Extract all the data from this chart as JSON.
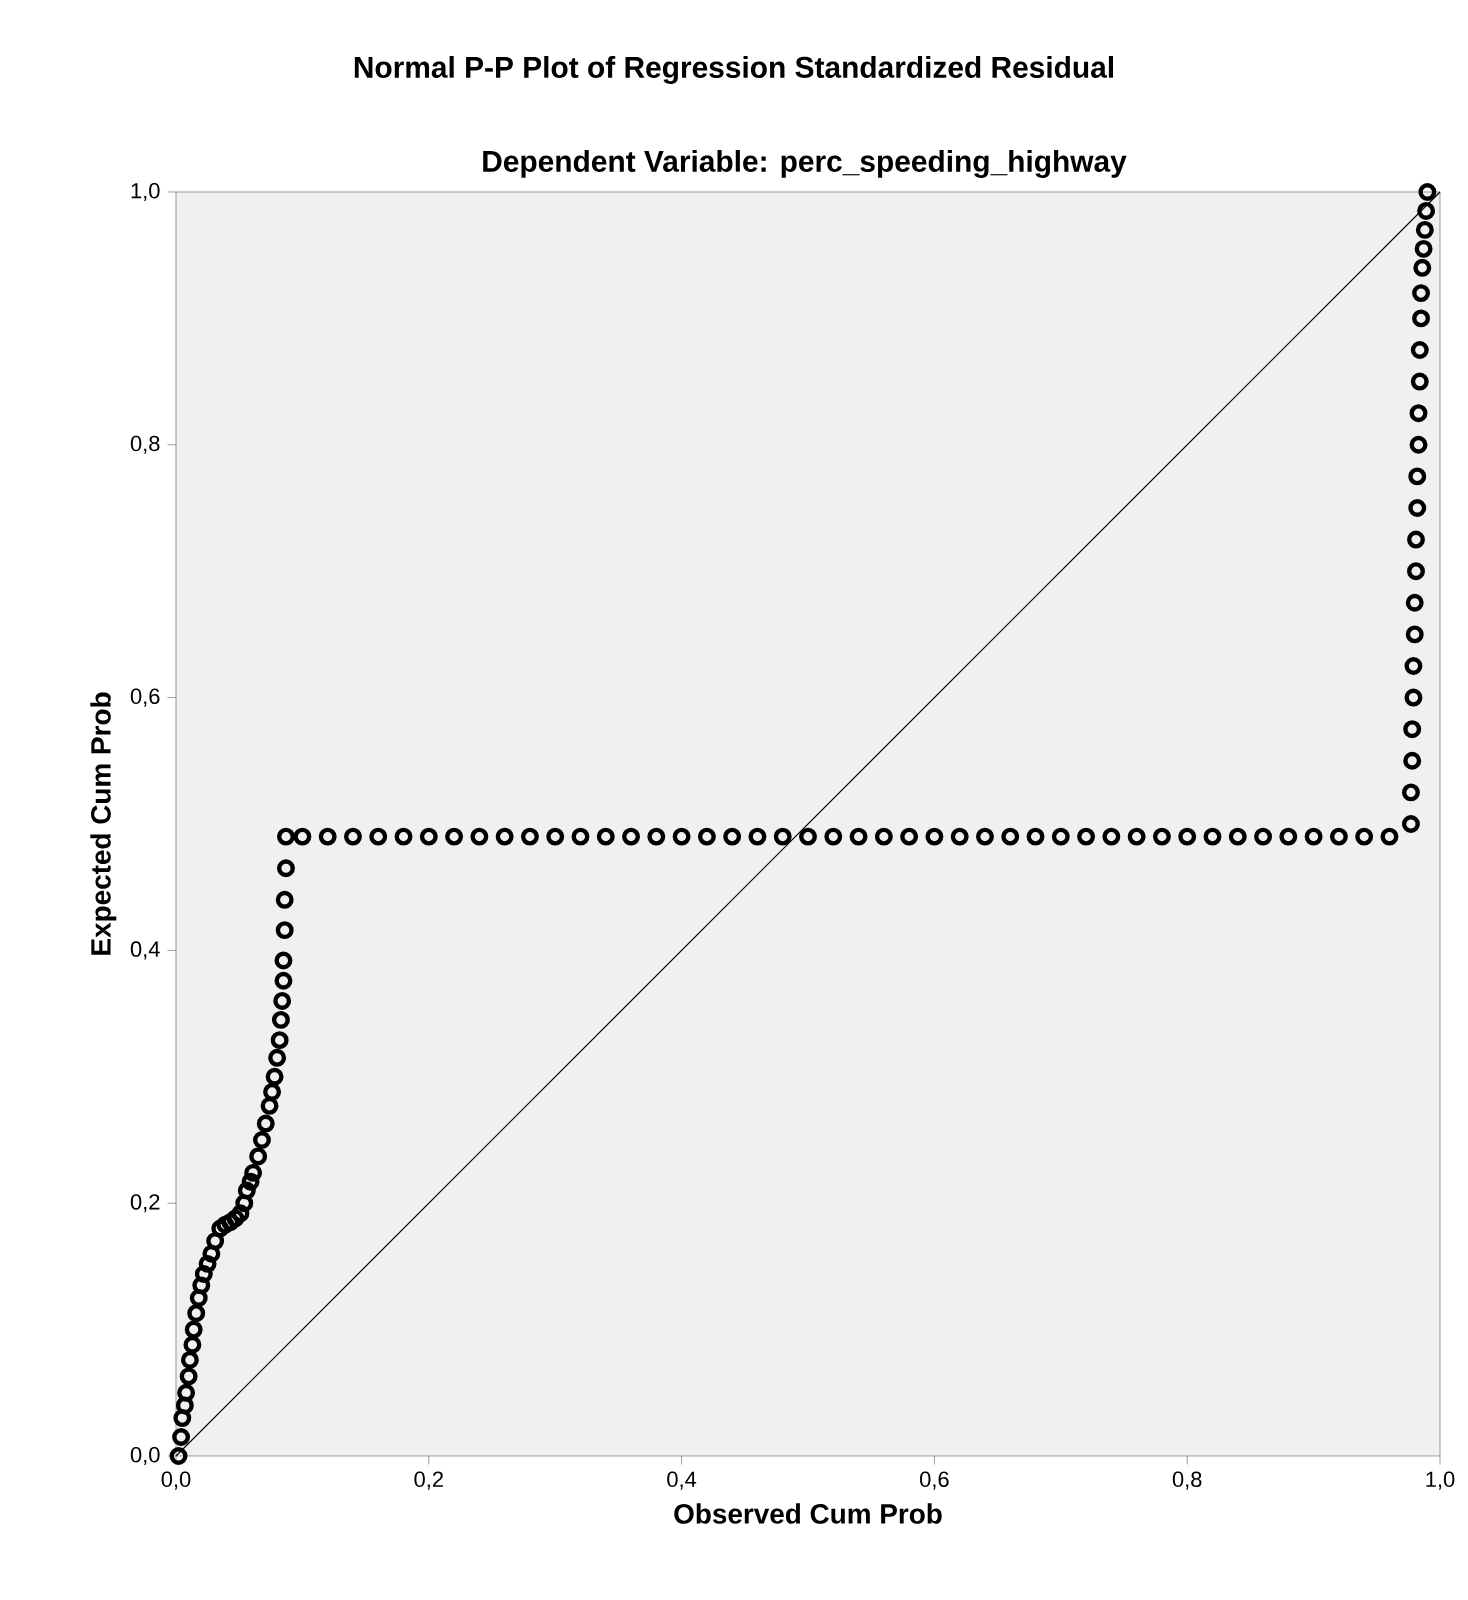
{
  "chart_data": {
    "type": "scatter",
    "title": "Normal P-P Plot of Regression Standardized Residual",
    "subtitle": "Dependent Variable: perc_speeding_highway",
    "xlabel": "Observed Cum Prob",
    "ylabel": "Expected Cum Prob",
    "xlim": [
      0,
      1
    ],
    "ylim": [
      0,
      1
    ],
    "xticks": [
      {
        "value": 0,
        "label": "0,0"
      },
      {
        "value": 0.2,
        "label": "0,2"
      },
      {
        "value": 0.4,
        "label": "0,4"
      },
      {
        "value": 0.6,
        "label": "0,6"
      },
      {
        "value": 0.8,
        "label": "0,8"
      },
      {
        "value": 1,
        "label": "1,0"
      }
    ],
    "yticks": [
      {
        "value": 0,
        "label": "0,0"
      },
      {
        "value": 0.2,
        "label": "0,2"
      },
      {
        "value": 0.4,
        "label": "0,4"
      },
      {
        "value": 0.6,
        "label": "0,6"
      },
      {
        "value": 0.8,
        "label": "0,8"
      },
      {
        "value": 1,
        "label": "1,0"
      }
    ],
    "grid": false,
    "series": [
      {
        "marker": "circle",
        "color": "#000000",
        "x": [
          0.002,
          0.004,
          0.005,
          0.007,
          0.008,
          0.01,
          0.011,
          0.013,
          0.014,
          0.016,
          0.018,
          0.02,
          0.022,
          0.025,
          0.028,
          0.031,
          0.035,
          0.039,
          0.043,
          0.047,
          0.051,
          0.054,
          0.056,
          0.059,
          0.061,
          0.065,
          0.068,
          0.071,
          0.074,
          0.076,
          0.078,
          0.08,
          0.082,
          0.083,
          0.084,
          0.085,
          0.085,
          0.086,
          0.086,
          0.087,
          0.087,
          0.1,
          0.12,
          0.14,
          0.16,
          0.18,
          0.2,
          0.22,
          0.24,
          0.26,
          0.28,
          0.3,
          0.32,
          0.34,
          0.36,
          0.38,
          0.4,
          0.42,
          0.44,
          0.46,
          0.48,
          0.5,
          0.52,
          0.54,
          0.56,
          0.58,
          0.6,
          0.62,
          0.64,
          0.66,
          0.68,
          0.7,
          0.72,
          0.74,
          0.76,
          0.78,
          0.8,
          0.82,
          0.84,
          0.86,
          0.88,
          0.9,
          0.92,
          0.94,
          0.96,
          0.977,
          0.977,
          0.978,
          0.978,
          0.979,
          0.979,
          0.98,
          0.98,
          0.981,
          0.981,
          0.982,
          0.982,
          0.983,
          0.983,
          0.984,
          0.984,
          0.985,
          0.985,
          0.986,
          0.987,
          0.988,
          0.989,
          0.99
        ],
        "values": [
          0.0,
          0.015,
          0.03,
          0.04,
          0.05,
          0.063,
          0.076,
          0.088,
          0.1,
          0.113,
          0.125,
          0.135,
          0.144,
          0.152,
          0.16,
          0.17,
          0.18,
          0.183,
          0.185,
          0.188,
          0.192,
          0.2,
          0.21,
          0.217,
          0.224,
          0.237,
          0.25,
          0.263,
          0.277,
          0.288,
          0.3,
          0.315,
          0.329,
          0.345,
          0.36,
          0.376,
          0.392,
          0.416,
          0.44,
          0.465,
          0.49,
          0.49,
          0.49,
          0.49,
          0.49,
          0.49,
          0.49,
          0.49,
          0.49,
          0.49,
          0.49,
          0.49,
          0.49,
          0.49,
          0.49,
          0.49,
          0.49,
          0.49,
          0.49,
          0.49,
          0.49,
          0.49,
          0.49,
          0.49,
          0.49,
          0.49,
          0.49,
          0.49,
          0.49,
          0.49,
          0.49,
          0.49,
          0.49,
          0.49,
          0.49,
          0.49,
          0.49,
          0.49,
          0.49,
          0.49,
          0.49,
          0.49,
          0.49,
          0.49,
          0.49,
          0.5,
          0.525,
          0.55,
          0.575,
          0.6,
          0.625,
          0.65,
          0.675,
          0.7,
          0.725,
          0.75,
          0.775,
          0.8,
          0.825,
          0.85,
          0.875,
          0.9,
          0.92,
          0.94,
          0.955,
          0.97,
          0.985,
          1.0
        ]
      },
      {
        "type": "line",
        "color": "#000000",
        "x": [
          0,
          1
        ],
        "values": [
          0,
          1
        ]
      }
    ]
  }
}
